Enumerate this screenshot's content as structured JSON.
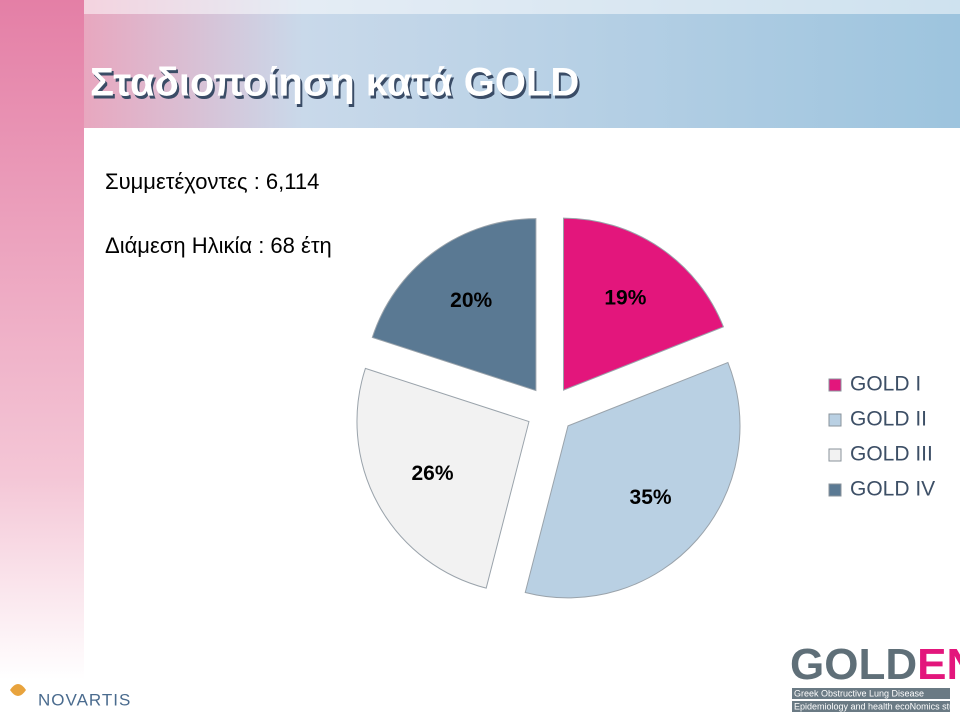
{
  "chart_data": {
    "type": "pie",
    "title": "Σταδιοποίηση κατά GOLD",
    "annotations": [
      "Συμμετέχοντες : 6,114",
      "Διάμεση Ηλικία : 68 έτη"
    ],
    "categories": [
      "GOLD I",
      "GOLD II",
      "GOLD III",
      "GOLD IV"
    ],
    "values": [
      19,
      35,
      26,
      20
    ],
    "value_labels": [
      "19%",
      "35%",
      "26%",
      "20%"
    ],
    "colors": [
      "#e3167c",
      "#b9d0e3",
      "#f2f2f2",
      "#5a7993"
    ],
    "legend": "right"
  },
  "logos": {
    "novartis": "NOVARTIS",
    "golden": [
      "GOLD",
      "EN"
    ],
    "golden_tagline": [
      "Greek Obstructive Lung Disease",
      "Epidemiology and health ecoNomics study"
    ]
  }
}
